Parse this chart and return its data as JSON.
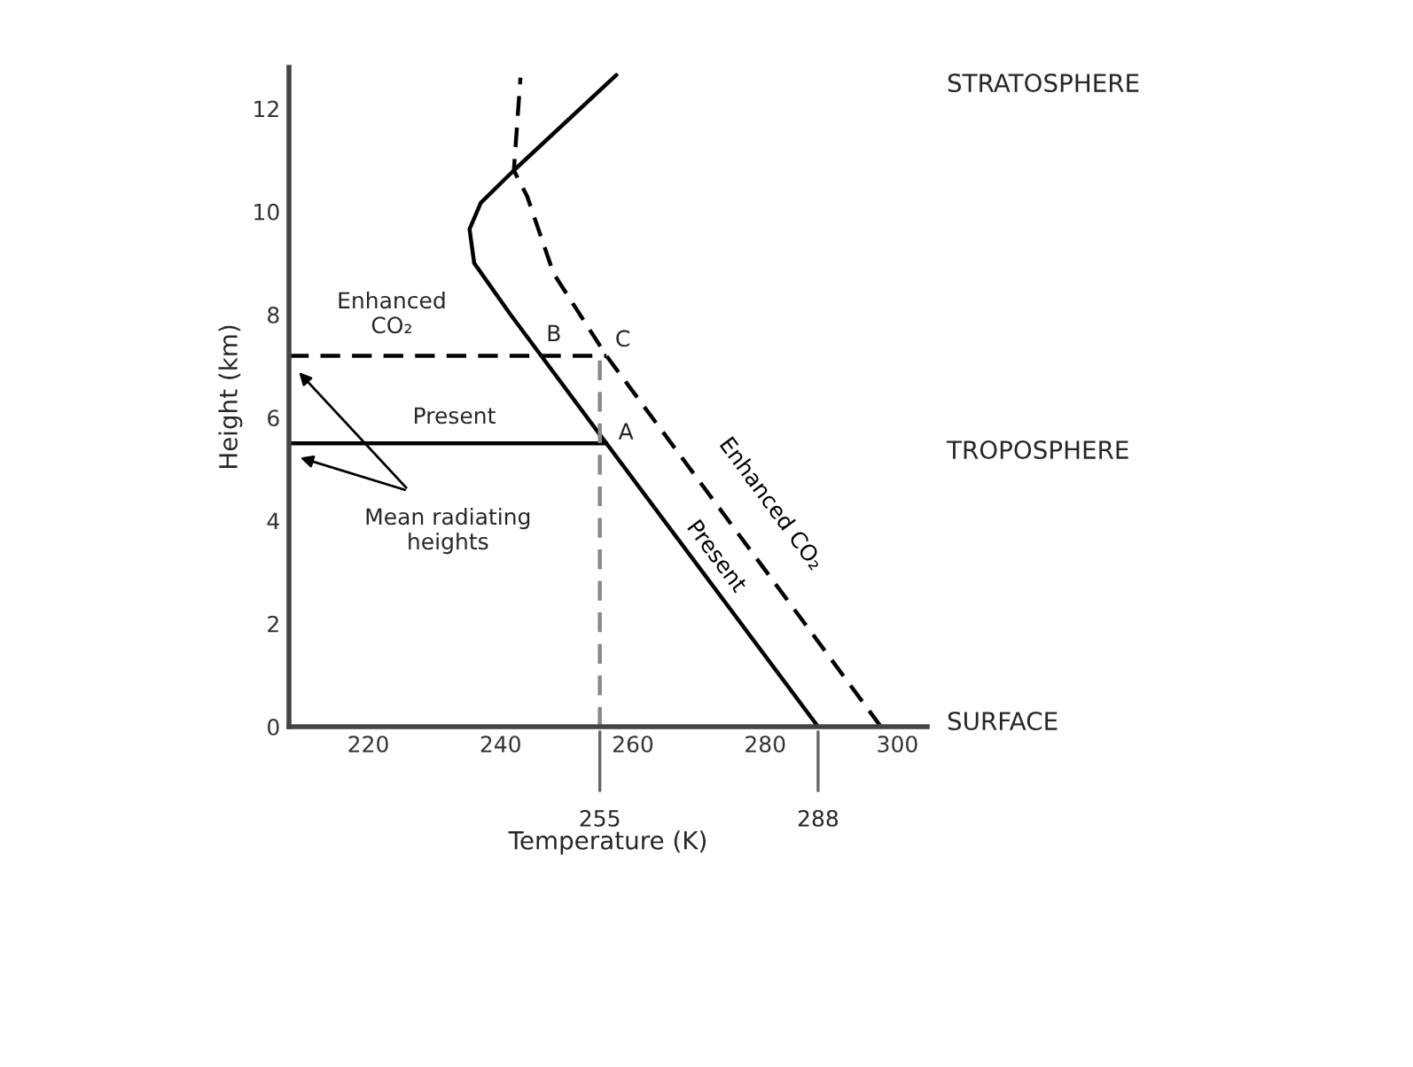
{
  "chart_data": {
    "type": "line",
    "xlabel": "Temperature (K)",
    "ylabel": "Height (km)",
    "xlim": [
      208,
      304.5
    ],
    "ylim": [
      0,
      12.8
    ],
    "xticks": [
      220,
      240,
      260,
      280,
      300
    ],
    "yticks": [
      0,
      2,
      4,
      6,
      8,
      10,
      12
    ],
    "grid": false,
    "legend": false,
    "marker": "none",
    "series": [
      {
        "name": "Present",
        "color": "#000000",
        "line_style": "solid",
        "x": [
          288,
          256,
          241.5,
          236,
          235.3,
          237,
          242,
          257.5
        ],
        "values": [
          0,
          5.5,
          8,
          9,
          9.66,
          10.17,
          10.8,
          12.65
        ]
      },
      {
        "name": "Enhanced CO₂",
        "color": "#000000",
        "line_style": "dashed",
        "x": [
          297.5,
          286,
          256,
          248,
          244,
          242,
          243
        ],
        "values": [
          0,
          2,
          7.2,
          8.8,
          10.3,
          10.8,
          12.6
        ]
      },
      {
        "color": "#000000",
        "line_style": "solid",
        "x": [
          208,
          256
        ],
        "values": [
          5.5,
          5.5
        ]
      },
      {
        "color": "#000000",
        "line_style": "dashed",
        "x": [
          208,
          256
        ],
        "values": [
          7.2,
          7.2
        ]
      },
      {
        "color": "#888888",
        "line_style": "dashed",
        "x": [
          255,
          255
        ],
        "values": [
          0,
          7.2
        ]
      }
    ],
    "annotations": [
      "STRATOSPHERE",
      "TROPOSPHERE",
      "SURFACE",
      "Enhanced\nCO₂",
      "Present",
      "Mean radiating\nheights",
      "A",
      "B",
      "C",
      {
        "text": "255",
        "x": 255
      },
      {
        "text": "288",
        "x": 288
      }
    ]
  }
}
